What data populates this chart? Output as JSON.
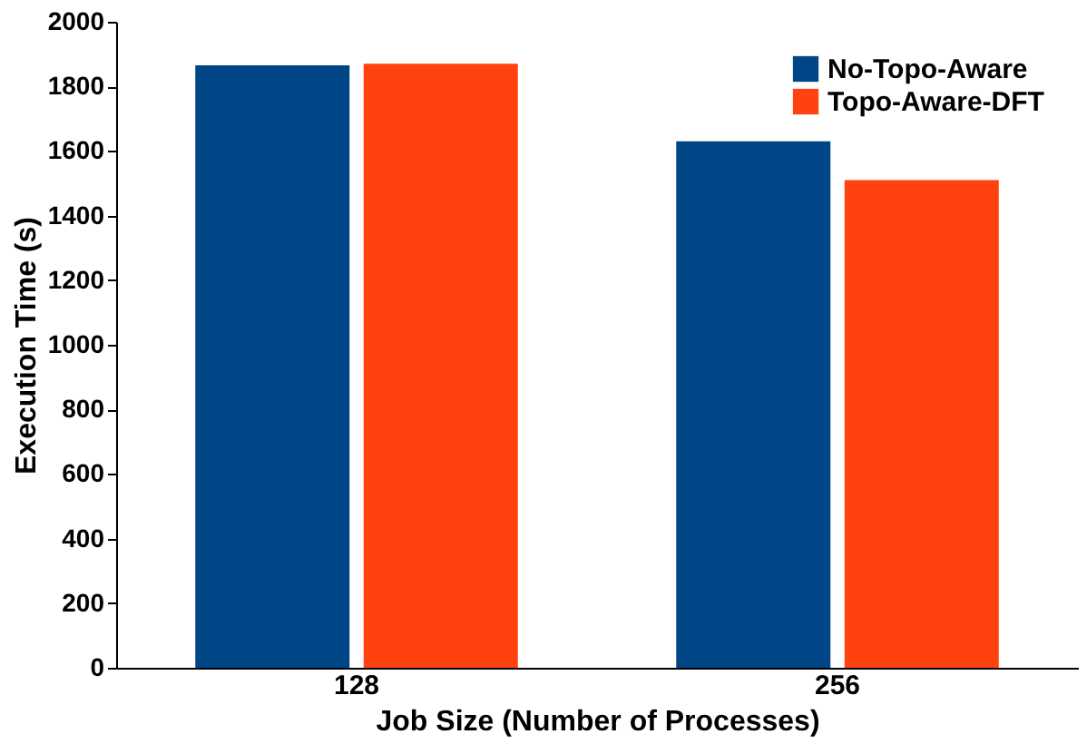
{
  "chart_data": {
    "type": "bar",
    "xlabel": "Job Size (Number of Processes)",
    "ylabel": "Execution Time (s)",
    "categories": [
      "128",
      "256"
    ],
    "series": [
      {
        "name": "No-Topo-Aware",
        "color": "#004586",
        "values": [
          1865,
          1630
        ]
      },
      {
        "name": "Topo-Aware-DFT",
        "color": "#ff420e",
        "values": [
          1870,
          1510
        ]
      }
    ],
    "ylim": [
      0,
      2000
    ],
    "yticks": [
      0,
      200,
      400,
      600,
      800,
      1000,
      1200,
      1400,
      1600,
      1800,
      2000
    ],
    "grid": false,
    "legend": "top right"
  }
}
